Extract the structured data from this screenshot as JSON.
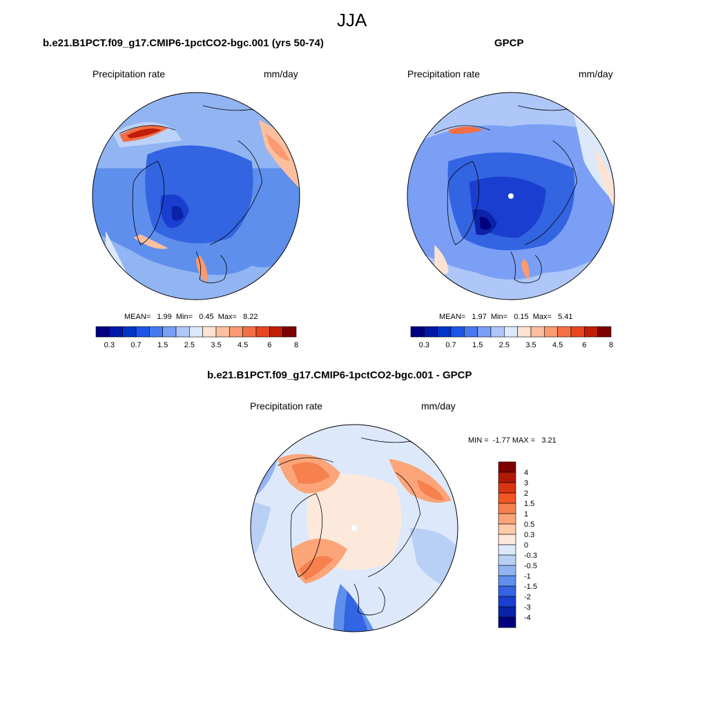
{
  "season": "JJA",
  "panels": {
    "model": {
      "title": "b.e21.B1PCT.f09_g17.CMIP6-1pctCO2-bgc.001 (yrs 50-74)",
      "left_label": "Precipitation rate",
      "right_label": "mm/day",
      "stats": "MEAN=   1.99  Min=   0.45  Max=   8.22"
    },
    "obs": {
      "title": "GPCP",
      "left_label": "Precipitation rate",
      "right_label": "mm/day",
      "stats": "MEAN=   1.97  Min=   0.15  Max=   5.41"
    },
    "diff": {
      "title": "b.e21.B1PCT.f09_g17.CMIP6-1pctCO2-bgc.001 - GPCP",
      "left_label": "Precipitation rate",
      "right_label": "mm/day",
      "stats": "MIN =  -1.77 MAX =   3.21"
    }
  },
  "colorbar_abs": {
    "colors": [
      "#00007f",
      "#0018a5",
      "#0035c8",
      "#1c55e6",
      "#4779f0",
      "#7a9ff5",
      "#aec6f8",
      "#dce9fb",
      "#fde3d3",
      "#fbbf9f",
      "#f99a72",
      "#f46f45",
      "#e84520",
      "#c01e08",
      "#7f0000"
    ],
    "tick_labels": [
      "0.3",
      "0.7",
      "1.5",
      "2.5",
      "3.5",
      "4.5",
      "6",
      "8"
    ]
  },
  "colorbar_diff": {
    "colors": [
      "#7f0000",
      "#b01a06",
      "#d83510",
      "#f25522",
      "#f7804f",
      "#fba578",
      "#fdcaab",
      "#fde9dc",
      "#dde9fb",
      "#b9d0f6",
      "#91b4f2",
      "#5f8fec",
      "#3364e2",
      "#1a3fd0",
      "#0a23a8",
      "#00007f"
    ],
    "tick_labels": [
      "4",
      "3",
      "2",
      "1.5",
      "1",
      "0.5",
      "0.3",
      "0",
      "-0.3",
      "-0.5",
      "-1",
      "-1.5",
      "-2",
      "-3",
      "-4"
    ]
  }
}
